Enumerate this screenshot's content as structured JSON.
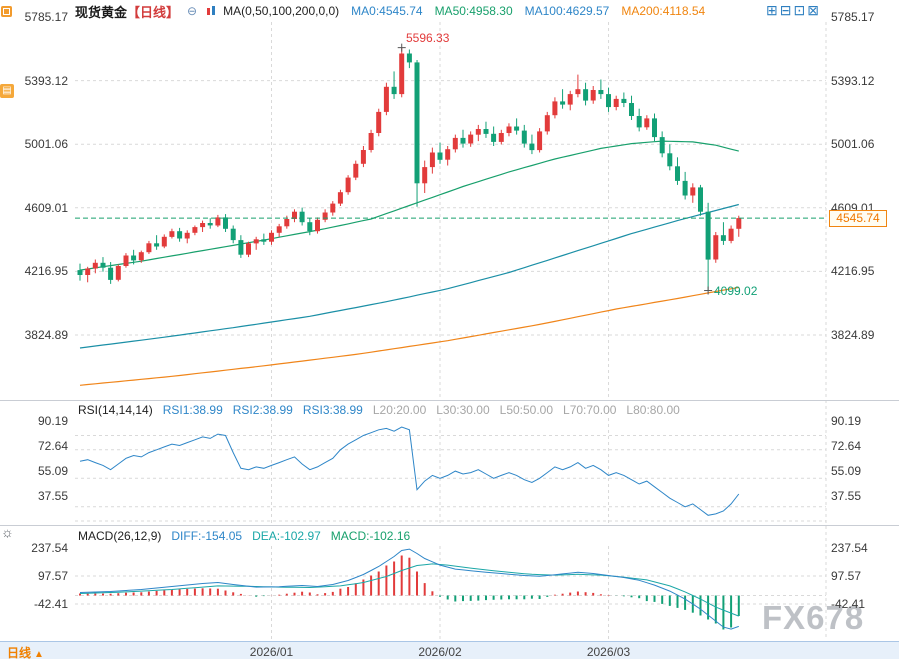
{
  "header": {
    "symbol": "现货黄金",
    "period": "【日线】",
    "ma_title": "MA(0,50,100,200,0,0)",
    "ma_items": [
      {
        "text": "MA0:4545.74",
        "color": "#2e86c8"
      },
      {
        "text": "MA50:4958.30",
        "color": "#18a06c"
      },
      {
        "text": "MA100:4629.57",
        "color": "#2e86c8"
      },
      {
        "text": "MA200:4118.54",
        "color": "#f0850f"
      }
    ]
  },
  "toolbar": {
    "icons": [
      {
        "name": "layout-single-icon",
        "glyph": "⊞"
      },
      {
        "name": "layout-split-icon",
        "glyph": "⊟"
      },
      {
        "name": "layout-grid-icon",
        "glyph": "⊡"
      },
      {
        "name": "layout-quad-icon",
        "glyph": "⊠"
      }
    ]
  },
  "rail": {
    "tool_glyph": "▤",
    "gear_glyph": "☼"
  },
  "axes": {
    "main": [
      "5785.17",
      "5393.12",
      "5001.06",
      "4609.01",
      "4216.95",
      "3824.89"
    ],
    "rsi": [
      "90.19",
      "72.64",
      "55.09",
      "37.55"
    ],
    "macd": [
      "237.54",
      "97.57",
      "-42.41"
    ],
    "time": [
      "2026/01",
      "2026/02",
      "2026/03"
    ]
  },
  "annotations": {
    "high": "5596.33",
    "low": "4099.02",
    "last_price": "4545.74"
  },
  "rsi": {
    "title": "RSI(14,14,14)",
    "items": [
      {
        "text": "RSI1:38.99",
        "color": "#2e86c8"
      },
      {
        "text": "RSI2:38.99",
        "color": "#2e86c8"
      },
      {
        "text": "RSI3:38.99",
        "color": "#2e86c8"
      },
      {
        "text": "L20:20.00",
        "color": "#a6a6a6"
      },
      {
        "text": "L30:30.00",
        "color": "#a6a6a6"
      },
      {
        "text": "L50:50.00",
        "color": "#a6a6a6"
      },
      {
        "text": "L70:70.00",
        "color": "#a6a6a6"
      },
      {
        "text": "L80:80.00",
        "color": "#a6a6a6"
      }
    ]
  },
  "macd": {
    "title": "MACD(26,12,9)",
    "items": [
      {
        "text": "DIFF:-154.05",
        "color": "#2e86c8"
      },
      {
        "text": "DEA:-102.97",
        "color": "#1ba7a7"
      },
      {
        "text": "MACD:-102.16",
        "color": "#18a06c"
      }
    ]
  },
  "footer": {
    "period": "日线",
    "arrow": "▲"
  },
  "watermark": "FX678",
  "colors": {
    "up": "#e23b3b",
    "down": "#12a076",
    "grid": "#d9d9d9",
    "divider": "#c9cdd4",
    "rsi_line": "#2e86c8",
    "diff_line": "#2e86c8",
    "dea_line": "#1ba7a7",
    "last_price_line": "#18a06c",
    "accent_blue": "#2e7fc0",
    "accent_orange": "#f08000"
  },
  "chart_data": [
    {
      "type": "candlestick",
      "title": "现货黄金 日线",
      "y_ticks": [
        5785.17,
        5393.12,
        5001.06,
        4609.01,
        4216.95,
        3824.89
      ],
      "ylim": [
        3437,
        5816
      ],
      "x_ticks": [
        {
          "index": 25,
          "label": "2026/01"
        },
        {
          "index": 47,
          "label": "2026/02"
        },
        {
          "index": 69,
          "label": "2026/03"
        }
      ],
      "last_price": 4545.74,
      "high_marker": {
        "index": 42,
        "price": 5596.33
      },
      "low_marker": {
        "index": 82,
        "price": 4099.02
      },
      "ohlc": [
        [
          4225,
          4265,
          4160,
          4195
        ],
        [
          4195,
          4245,
          4150,
          4235
        ],
        [
          4235,
          4290,
          4205,
          4270
        ],
        [
          4270,
          4305,
          4215,
          4240
        ],
        [
          4240,
          4275,
          4140,
          4165
        ],
        [
          4165,
          4260,
          4155,
          4250
        ],
        [
          4250,
          4330,
          4240,
          4315
        ],
        [
          4315,
          4350,
          4260,
          4285
        ],
        [
          4285,
          4345,
          4270,
          4335
        ],
        [
          4335,
          4405,
          4325,
          4390
        ],
        [
          4390,
          4440,
          4350,
          4370
        ],
        [
          4370,
          4445,
          4360,
          4430
        ],
        [
          4430,
          4480,
          4420,
          4465
        ],
        [
          4465,
          4485,
          4400,
          4420
        ],
        [
          4420,
          4470,
          4390,
          4455
        ],
        [
          4455,
          4500,
          4440,
          4490
        ],
        [
          4490,
          4530,
          4460,
          4515
        ],
        [
          4515,
          4545,
          4480,
          4500
        ],
        [
          4500,
          4565,
          4490,
          4550
        ],
        [
          4550,
          4570,
          4460,
          4480
        ],
        [
          4480,
          4500,
          4390,
          4410
        ],
        [
          4410,
          4440,
          4300,
          4320
        ],
        [
          4320,
          4400,
          4305,
          4390
        ],
        [
          4390,
          4430,
          4350,
          4415
        ],
        [
          4415,
          4450,
          4380,
          4400
        ],
        [
          4400,
          4470,
          4380,
          4455
        ],
        [
          4455,
          4510,
          4430,
          4495
        ],
        [
          4495,
          4560,
          4480,
          4540
        ],
        [
          4540,
          4600,
          4520,
          4585
        ],
        [
          4585,
          4610,
          4500,
          4520
        ],
        [
          4520,
          4545,
          4440,
          4465
        ],
        [
          4465,
          4550,
          4450,
          4535
        ],
        [
          4535,
          4600,
          4520,
          4580
        ],
        [
          4580,
          4650,
          4560,
          4635
        ],
        [
          4635,
          4720,
          4620,
          4705
        ],
        [
          4705,
          4810,
          4690,
          4795
        ],
        [
          4795,
          4900,
          4780,
          4880
        ],
        [
          4880,
          4990,
          4860,
          4965
        ],
        [
          4965,
          5090,
          4950,
          5070
        ],
        [
          5070,
          5220,
          5050,
          5200
        ],
        [
          5200,
          5380,
          5180,
          5355
        ],
        [
          5355,
          5450,
          5280,
          5310
        ],
        [
          5310,
          5596.33,
          5290,
          5560
        ],
        [
          5560,
          5585,
          5470,
          5505
        ],
        [
          5505,
          5520,
          4615,
          4760
        ],
        [
          4760,
          4900,
          4700,
          4860
        ],
        [
          4860,
          4980,
          4820,
          4950
        ],
        [
          4950,
          5010,
          4880,
          4905
        ],
        [
          4905,
          4990,
          4870,
          4970
        ],
        [
          4970,
          5060,
          4950,
          5040
        ],
        [
          5040,
          5090,
          4980,
          5005
        ],
        [
          5005,
          5080,
          4985,
          5060
        ],
        [
          5060,
          5120,
          5020,
          5095
        ],
        [
          5095,
          5140,
          5040,
          5065
        ],
        [
          5065,
          5110,
          4990,
          5015
        ],
        [
          5015,
          5090,
          5000,
          5070
        ],
        [
          5070,
          5130,
          5050,
          5110
        ],
        [
          5110,
          5160,
          5060,
          5085
        ],
        [
          5085,
          5120,
          4980,
          5005
        ],
        [
          5005,
          5060,
          4940,
          4965
        ],
        [
          4965,
          5100,
          4950,
          5080
        ],
        [
          5080,
          5200,
          5060,
          5180
        ],
        [
          5180,
          5290,
          5160,
          5265
        ],
        [
          5265,
          5340,
          5220,
          5245
        ],
        [
          5245,
          5330,
          5210,
          5310
        ],
        [
          5310,
          5430,
          5290,
          5340
        ],
        [
          5340,
          5380,
          5240,
          5270
        ],
        [
          5270,
          5360,
          5250,
          5335
        ],
        [
          5335,
          5400,
          5280,
          5310
        ],
        [
          5310,
          5350,
          5200,
          5230
        ],
        [
          5230,
          5300,
          5210,
          5280
        ],
        [
          5280,
          5320,
          5230,
          5255
        ],
        [
          5255,
          5300,
          5150,
          5175
        ],
        [
          5175,
          5220,
          5080,
          5105
        ],
        [
          5105,
          5180,
          5090,
          5160
        ],
        [
          5160,
          5190,
          5020,
          5045
        ],
        [
          5045,
          5080,
          4920,
          4945
        ],
        [
          4945,
          5000,
          4840,
          4865
        ],
        [
          4865,
          4920,
          4750,
          4775
        ],
        [
          4775,
          4830,
          4660,
          4685
        ],
        [
          4685,
          4760,
          4640,
          4735
        ],
        [
          4735,
          4750,
          4560,
          4585
        ],
        [
          4585,
          4640,
          4099.02,
          4290
        ],
        [
          4290,
          4460,
          4270,
          4440
        ],
        [
          4440,
          4520,
          4380,
          4405
        ],
        [
          4405,
          4500,
          4390,
          4480
        ],
        [
          4480,
          4560,
          4430,
          4545.74
        ]
      ],
      "overlays": [
        {
          "name": "MA50",
          "color": "#18a06c",
          "anchors": [
            [
              0,
              4225
            ],
            [
              8,
              4280
            ],
            [
              16,
              4345
            ],
            [
              24,
              4410
            ],
            [
              32,
              4480
            ],
            [
              38,
              4540
            ],
            [
              44,
              4640
            ],
            [
              50,
              4740
            ],
            [
              56,
              4830
            ],
            [
              62,
              4910
            ],
            [
              68,
              4975
            ],
            [
              72,
              5005
            ],
            [
              76,
              5020
            ],
            [
              80,
              5015
            ],
            [
              83,
              4995
            ],
            [
              86,
              4958.3
            ]
          ]
        },
        {
          "name": "MA100",
          "color": "#1b8fa6",
          "anchors": [
            [
              0,
              3745
            ],
            [
              10,
              3805
            ],
            [
              20,
              3870
            ],
            [
              30,
              3940
            ],
            [
              40,
              4030
            ],
            [
              48,
              4110
            ],
            [
              56,
              4210
            ],
            [
              64,
              4330
            ],
            [
              72,
              4450
            ],
            [
              78,
              4530
            ],
            [
              82,
              4580
            ],
            [
              86,
              4629.57
            ]
          ]
        },
        {
          "name": "MA200",
          "color": "#f0851a",
          "anchors": [
            [
              0,
              3515
            ],
            [
              12,
              3570
            ],
            [
              24,
              3635
            ],
            [
              36,
              3705
            ],
            [
              48,
              3790
            ],
            [
              60,
              3890
            ],
            [
              70,
              3985
            ],
            [
              78,
              4050
            ],
            [
              86,
              4118.54
            ]
          ]
        }
      ]
    },
    {
      "type": "line",
      "name": "RSI(14,14,14)",
      "ylim": [
        18,
        92
      ],
      "y_ticks": [
        90.19,
        72.64,
        55.09,
        37.55
      ],
      "levels": [
        20,
        30,
        50,
        70,
        80
      ],
      "values": [
        62,
        63,
        61,
        59,
        56,
        60,
        64,
        66,
        65,
        68,
        70,
        72,
        74,
        73,
        75,
        77,
        79,
        78,
        81,
        80,
        68,
        57,
        56,
        58,
        57,
        59,
        61,
        63,
        65,
        60,
        56,
        58,
        61,
        64,
        70,
        74,
        77,
        80,
        82,
        84,
        85,
        83,
        86,
        84,
        42,
        48,
        52,
        50,
        52,
        55,
        53,
        54,
        56,
        53,
        50,
        52,
        54,
        52,
        49,
        47,
        50,
        54,
        58,
        56,
        58,
        61,
        57,
        59,
        56,
        52,
        54,
        52,
        49,
        46,
        48,
        44,
        40,
        36,
        33,
        30,
        32,
        28,
        24,
        25,
        27,
        32,
        38.99
      ]
    },
    {
      "type": "bar",
      "name": "MACD(26,12,9)",
      "ylim": [
        -222,
        248
      ],
      "y_ticks": [
        237.54,
        97.57,
        -42.41
      ],
      "histogram_rule": "2*(DIFF-DEA)",
      "diff_anchors": [
        [
          0,
          15
        ],
        [
          4,
          20
        ],
        [
          8,
          30
        ],
        [
          12,
          45
        ],
        [
          16,
          60
        ],
        [
          18,
          65
        ],
        [
          20,
          55
        ],
        [
          23,
          42
        ],
        [
          26,
          44
        ],
        [
          29,
          50
        ],
        [
          31,
          45
        ],
        [
          33,
          55
        ],
        [
          35,
          75
        ],
        [
          37,
          105
        ],
        [
          39,
          145
        ],
        [
          41,
          195
        ],
        [
          42,
          225
        ],
        [
          43,
          232
        ],
        [
          44,
          210
        ],
        [
          45,
          185
        ],
        [
          47,
          152
        ],
        [
          49,
          132
        ],
        [
          52,
          120
        ],
        [
          55,
          110
        ],
        [
          58,
          100
        ],
        [
          60,
          96
        ],
        [
          62,
          104
        ],
        [
          64,
          112
        ],
        [
          65,
          116
        ],
        [
          67,
          110
        ],
        [
          69,
          100
        ],
        [
          71,
          90
        ],
        [
          73,
          76
        ],
        [
          75,
          52
        ],
        [
          77,
          22
        ],
        [
          79,
          -18
        ],
        [
          81,
          -68
        ],
        [
          83,
          -128
        ],
        [
          84,
          -158
        ],
        [
          85,
          -168
        ],
        [
          86,
          -154.05
        ]
      ],
      "dea_anchors": [
        [
          0,
          10
        ],
        [
          6,
          18
        ],
        [
          12,
          30
        ],
        [
          18,
          48
        ],
        [
          22,
          46
        ],
        [
          26,
          42
        ],
        [
          30,
          40
        ],
        [
          34,
          48
        ],
        [
          37,
          65
        ],
        [
          40,
          95
        ],
        [
          42,
          125
        ],
        [
          44,
          150
        ],
        [
          46,
          158
        ],
        [
          48,
          152
        ],
        [
          50,
          142
        ],
        [
          53,
          128
        ],
        [
          56,
          116
        ],
        [
          59,
          106
        ],
        [
          62,
          102
        ],
        [
          65,
          106
        ],
        [
          68,
          102
        ],
        [
          71,
          92
        ],
        [
          74,
          78
        ],
        [
          77,
          48
        ],
        [
          79,
          18
        ],
        [
          81,
          -18
        ],
        [
          83,
          -58
        ],
        [
          85,
          -88
        ],
        [
          86,
          -102.97
        ]
      ]
    }
  ]
}
